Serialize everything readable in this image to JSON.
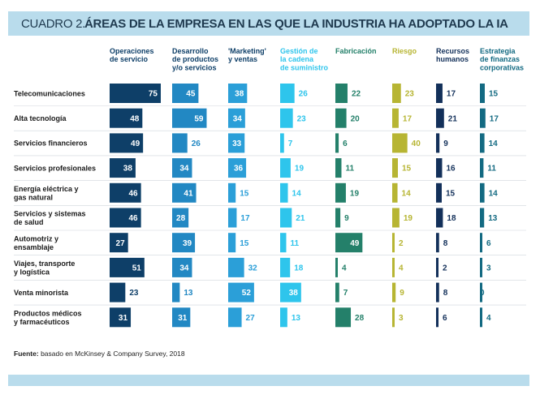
{
  "title_prefix": "CUADRO 2.",
  "title": "ÁREAS DE LA EMPRESA EN LAS QUE LA INDUSTRIA HA ADOPTADO LA IA",
  "source_label": "Fuente:",
  "source_text": "basado en McKinsey & Company Survey, 2018",
  "chart_data": {
    "type": "table",
    "title": "ÁREAS DE LA EMPRESA EN LAS QUE LA INDUSTRIA HA ADOPTADO LA IA",
    "columns": [
      {
        "label": "Operaciones de servicio",
        "lines": [
          "Operaciones",
          "de servicio"
        ],
        "color": "#0e3f68",
        "label_color": "#0e3f68",
        "text_color": "#ffffff"
      },
      {
        "label": "Desarrollo de productos y/o servicios",
        "lines": [
          "Desarrollo",
          "de productos",
          "y/o servicios"
        ],
        "color": "#2288c3",
        "label_color": "#0e3f68",
        "text_color": "#ffffff"
      },
      {
        "label": "'Marketing' y ventas",
        "lines": [
          "'Marketing'",
          "y ventas"
        ],
        "color": "#2b9fd8",
        "label_color": "#0e3f68",
        "text_color": "#ffffff"
      },
      {
        "label": "Gestión de la cadena de suministro",
        "lines": [
          "Gestión de",
          "la cadena",
          "de suministro"
        ],
        "color": "#2ec5ec",
        "label_color": "#2ec5ec",
        "text_color": "#ffffff"
      },
      {
        "label": "Fabricación",
        "lines": [
          "Fabricación"
        ],
        "color": "#24806a",
        "label_color": "#24806a",
        "text_color": "#ffffff"
      },
      {
        "label": "Riesgo",
        "lines": [
          "Riesgo"
        ],
        "color": "#b7b533",
        "label_color": "#b7b533",
        "text_color": "#ffffff"
      },
      {
        "label": "Recursos humanos",
        "lines": [
          "Recursos",
          "humanos"
        ],
        "color": "#13305a",
        "label_color": "#13305a",
        "text_color": "#ffffff"
      },
      {
        "label": "Estrategia de finanzas corporativas",
        "lines": [
          "Estrategia",
          "de finanzas",
          "corporativas"
        ],
        "color": "#136a82",
        "label_color": "#136a82",
        "text_color": "#ffffff"
      }
    ],
    "rows": [
      {
        "label": "Telecomunicaciones",
        "lines": [
          "Telecomunicaciones"
        ],
        "values": [
          75,
          45,
          38,
          26,
          22,
          23,
          17,
          15
        ]
      },
      {
        "label": "Alta tecnología",
        "lines": [
          "Alta tecnología"
        ],
        "values": [
          48,
          59,
          34,
          23,
          20,
          17,
          21,
          17
        ]
      },
      {
        "label": "Servicios financieros",
        "lines": [
          "Servicios financieros"
        ],
        "values": [
          49,
          26,
          33,
          7,
          6,
          40,
          9,
          14
        ]
      },
      {
        "label": "Servicios profesionales",
        "lines": [
          "Servicios profesionales"
        ],
        "values": [
          38,
          34,
          36,
          19,
          11,
          15,
          16,
          11
        ]
      },
      {
        "label": "Energía eléctrica y gas natural",
        "lines": [
          "Energía eléctrica y",
          "gas natural"
        ],
        "values": [
          46,
          41,
          15,
          14,
          19,
          14,
          15,
          14
        ]
      },
      {
        "label": "Servicios y sistemas de salud",
        "lines": [
          "Servicios y sistemas",
          "de salud"
        ],
        "values": [
          46,
          28,
          17,
          21,
          9,
          19,
          18,
          13
        ]
      },
      {
        "label": "Automotriz y ensamblaje",
        "lines": [
          "Automotriz y",
          "ensamblaje"
        ],
        "values": [
          27,
          39,
          15,
          11,
          49,
          2,
          8,
          6
        ]
      },
      {
        "label": "Viajes, transporte y logística",
        "lines": [
          "Viajes, transporte",
          "y logística"
        ],
        "values": [
          51,
          34,
          32,
          18,
          4,
          4,
          2,
          3
        ]
      },
      {
        "label": "Venta minorista",
        "lines": [
          "Venta minorista"
        ],
        "values": [
          23,
          13,
          52,
          38,
          7,
          9,
          8,
          0
        ]
      },
      {
        "label": "Productos médicos y farmacéuticos",
        "lines": [
          "Productos médicos",
          "y farmacéuticos"
        ],
        "values": [
          31,
          31,
          27,
          13,
          28,
          3,
          6,
          4
        ]
      }
    ],
    "value_max": 75
  }
}
